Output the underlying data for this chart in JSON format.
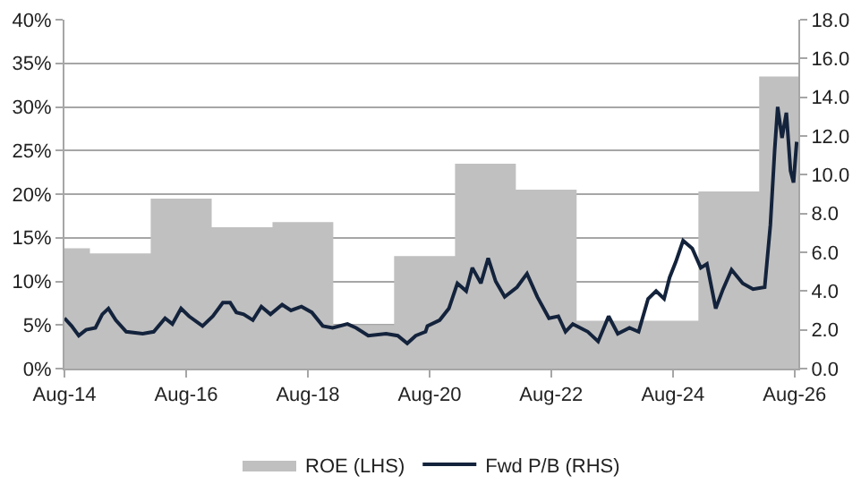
{
  "chart_data": {
    "type": "area",
    "legend": "bottom",
    "grid": "y",
    "xlim": [
      "2014-08-01",
      "2026-08-24"
    ],
    "xticks": [
      {
        "value": "2014-08-01",
        "label": "Aug-14"
      },
      {
        "value": "2016-08-01",
        "label": "Aug-16"
      },
      {
        "value": "2018-08-01",
        "label": "Aug-18"
      },
      {
        "value": "2020-08-01",
        "label": "Aug-20"
      },
      {
        "value": "2022-08-01",
        "label": "Aug-22"
      },
      {
        "value": "2024-08-01",
        "label": "Aug-24"
      },
      {
        "value": "2026-08-01",
        "label": "Aug-26"
      }
    ],
    "ylim": [
      0,
      40
    ],
    "yticks": [
      {
        "value": 0,
        "label": "0%"
      },
      {
        "value": 5,
        "label": "5%"
      },
      {
        "value": 10,
        "label": "10%"
      },
      {
        "value": 15,
        "label": "15%"
      },
      {
        "value": 20,
        "label": "20%"
      },
      {
        "value": 25,
        "label": "25%"
      },
      {
        "value": 30,
        "label": "30%"
      },
      {
        "value": 35,
        "label": "35%"
      },
      {
        "value": 40,
        "label": "40%"
      }
    ],
    "y2lim": [
      0,
      18
    ],
    "y2ticks": [
      {
        "value": 0,
        "label": "0.0"
      },
      {
        "value": 2,
        "label": "2.0"
      },
      {
        "value": 4,
        "label": "4.0"
      },
      {
        "value": 6,
        "label": "6.0"
      },
      {
        "value": 8,
        "label": "8.0"
      },
      {
        "value": 10,
        "label": "10.0"
      },
      {
        "value": 12,
        "label": "12.0"
      },
      {
        "value": 14,
        "label": "14.0"
      },
      {
        "value": 16,
        "label": "16.0"
      },
      {
        "value": 18,
        "label": "18.0"
      }
    ],
    "series": [
      {
        "name": "ROE (LHS)",
        "color": "#c0c0c0",
        "x": [
          "2014-08-01",
          "2015-01-01",
          "2015-01-01",
          "2016-01-01",
          "2016-01-01",
          "2017-01-01",
          "2017-01-01",
          "2018-01-01",
          "2018-01-01",
          "2019-01-01",
          "2019-01-01",
          "2020-01-01",
          "2020-01-01",
          "2021-01-01",
          "2021-01-01",
          "2022-01-01",
          "2022-01-01",
          "2023-01-01",
          "2023-01-01",
          "2025-01-01",
          "2025-01-01",
          "2026-01-01",
          "2026-01-01",
          "2026-08-24"
        ],
        "values": [
          13.8,
          13.8,
          13.2,
          13.2,
          19.5,
          19.5,
          16.2,
          16.2,
          16.8,
          16.8,
          5.0,
          5.0,
          12.9,
          12.9,
          23.5,
          23.5,
          20.5,
          20.5,
          5.5,
          5.5,
          20.3,
          20.3,
          33.5,
          33.5
        ]
      },
      {
        "name": "Fwd P/B (RHS)",
        "type": "line",
        "axis": "y2",
        "color": "#14233c",
        "x": [
          "2014-08-01",
          "2014-09-13",
          "2014-10-26",
          "2014-12-09",
          "2015-02-03",
          "2015-03-16",
          "2015-04-22",
          "2015-06-05",
          "2015-08-07",
          "2015-11-14",
          "2016-01-19",
          "2016-03-27",
          "2016-05-10",
          "2016-07-01",
          "2016-08-18",
          "2016-11-07",
          "2017-01-08",
          "2017-03-09",
          "2017-04-22",
          "2017-05-29",
          "2017-07-12",
          "2017-09-05",
          "2017-10-26",
          "2017-12-20",
          "2018-02-28",
          "2018-04-22",
          "2018-06-24",
          "2018-08-25",
          "2018-10-30",
          "2018-12-28",
          "2019-03-27",
          "2019-05-18",
          "2019-07-30",
          "2019-11-14",
          "2020-01-23",
          "2020-03-20",
          "2020-05-10",
          "2020-07-08",
          "2020-07-19",
          "2020-10-01",
          "2020-11-25",
          "2021-01-15",
          "2021-03-09",
          "2021-04-15",
          "2021-06-05",
          "2021-07-19",
          "2021-09-02",
          "2021-10-26",
          "2022-01-08",
          "2022-03-09",
          "2022-05-10",
          "2022-07-19",
          "2022-09-13",
          "2022-10-26",
          "2022-12-09",
          "2023-03-09",
          "2023-05-10",
          "2023-07-12",
          "2023-09-05",
          "2023-11-14",
          "2024-01-08",
          "2024-03-05",
          "2024-04-22",
          "2024-06-09",
          "2024-07-12",
          "2024-08-18",
          "2024-10-01",
          "2024-11-25",
          "2025-01-15",
          "2025-02-21",
          "2025-04-15",
          "2025-05-29",
          "2025-07-19",
          "2025-09-24",
          "2025-11-25",
          "2026-02-03",
          "2026-03-09",
          "2026-04-04",
          "2026-04-22",
          "2026-05-18",
          "2026-06-13",
          "2026-07-08",
          "2026-07-26",
          "2026-08-14"
        ],
        "values": [
          2.6,
          2.2,
          1.7,
          2.0,
          2.1,
          2.8,
          3.1,
          2.5,
          1.9,
          1.8,
          1.9,
          2.6,
          2.3,
          3.1,
          2.7,
          2.2,
          2.7,
          3.4,
          3.4,
          2.9,
          2.8,
          2.5,
          3.2,
          2.8,
          3.3,
          3.0,
          3.2,
          2.9,
          2.2,
          2.1,
          2.3,
          2.1,
          1.7,
          1.8,
          1.7,
          1.3,
          1.7,
          1.9,
          2.2,
          2.5,
          3.1,
          4.4,
          4.0,
          5.2,
          4.4,
          5.7,
          4.5,
          3.7,
          4.2,
          4.9,
          3.7,
          2.6,
          2.7,
          1.9,
          2.3,
          1.9,
          1.4,
          2.7,
          1.8,
          2.1,
          1.9,
          3.6,
          4.0,
          3.6,
          4.7,
          5.5,
          6.6,
          6.2,
          5.2,
          5.4,
          3.1,
          4.1,
          5.1,
          4.4,
          4.1,
          4.2,
          7.4,
          11.3,
          13.5,
          11.9,
          13.2,
          10.2,
          9.6,
          11.7
        ]
      }
    ]
  }
}
